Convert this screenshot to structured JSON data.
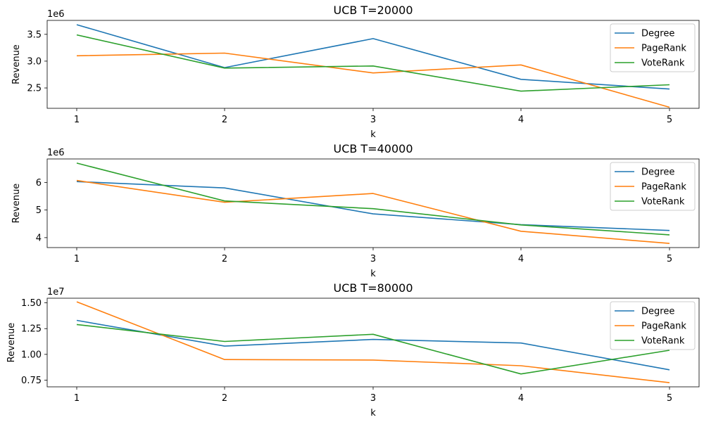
{
  "chart_data": [
    {
      "type": "line",
      "title": "UCB T=20000",
      "xlabel": "k",
      "ylabel": "Revenue",
      "offset_label": "1e6",
      "x": [
        1,
        2,
        3,
        4,
        5
      ],
      "xticks": [
        "1",
        "2",
        "3",
        "4",
        "5"
      ],
      "ylim": [
        2.12,
        3.76
      ],
      "yticks": [
        2.5,
        3.0,
        3.5
      ],
      "ytick_labels": [
        "2.5",
        "3.0",
        "3.5"
      ],
      "legend": "upper-right",
      "series": [
        {
          "name": "Degree",
          "values": [
            3.68,
            2.88,
            3.42,
            2.66,
            2.48
          ]
        },
        {
          "name": "PageRank",
          "values": [
            3.1,
            3.15,
            2.78,
            2.93,
            2.14
          ]
        },
        {
          "name": "VoteRank",
          "values": [
            3.49,
            2.87,
            2.91,
            2.44,
            2.56
          ]
        }
      ]
    },
    {
      "type": "line",
      "title": "UCB T=40000",
      "xlabel": "k",
      "ylabel": "Revenue",
      "offset_label": "1e6",
      "x": [
        1,
        2,
        3,
        4,
        5
      ],
      "xticks": [
        "1",
        "2",
        "3",
        "4",
        "5"
      ],
      "ylim": [
        3.64,
        6.85
      ],
      "yticks": [
        4,
        5,
        6
      ],
      "ytick_labels": [
        "4",
        "5",
        "6"
      ],
      "legend": "upper-right",
      "series": [
        {
          "name": "Degree",
          "values": [
            6.03,
            5.8,
            4.86,
            4.47,
            4.26
          ]
        },
        {
          "name": "PageRank",
          "values": [
            6.07,
            5.28,
            5.6,
            4.23,
            3.79
          ]
        },
        {
          "name": "VoteRank",
          "values": [
            6.7,
            5.33,
            5.05,
            4.46,
            4.1
          ]
        }
      ]
    },
    {
      "type": "line",
      "title": "UCB T=80000",
      "xlabel": "k",
      "ylabel": "Revenue",
      "offset_label": "1e7",
      "x": [
        1,
        2,
        3,
        4,
        5
      ],
      "xticks": [
        "1",
        "2",
        "3",
        "4",
        "5"
      ],
      "ylim": [
        0.685,
        1.545
      ],
      "yticks": [
        0.75,
        1.0,
        1.25,
        1.5
      ],
      "ytick_labels": [
        "0.75",
        "1.00",
        "1.25",
        "1.50"
      ],
      "legend": "upper-right",
      "series": [
        {
          "name": "Degree",
          "values": [
            1.33,
            1.08,
            1.145,
            1.11,
            0.85
          ]
        },
        {
          "name": "PageRank",
          "values": [
            1.51,
            0.95,
            0.945,
            0.89,
            0.725
          ]
        },
        {
          "name": "VoteRank",
          "values": [
            1.29,
            1.125,
            1.195,
            0.81,
            1.04
          ]
        }
      ]
    }
  ],
  "colors": [
    "#1f77b4",
    "#ff7f0e",
    "#2ca02c"
  ]
}
